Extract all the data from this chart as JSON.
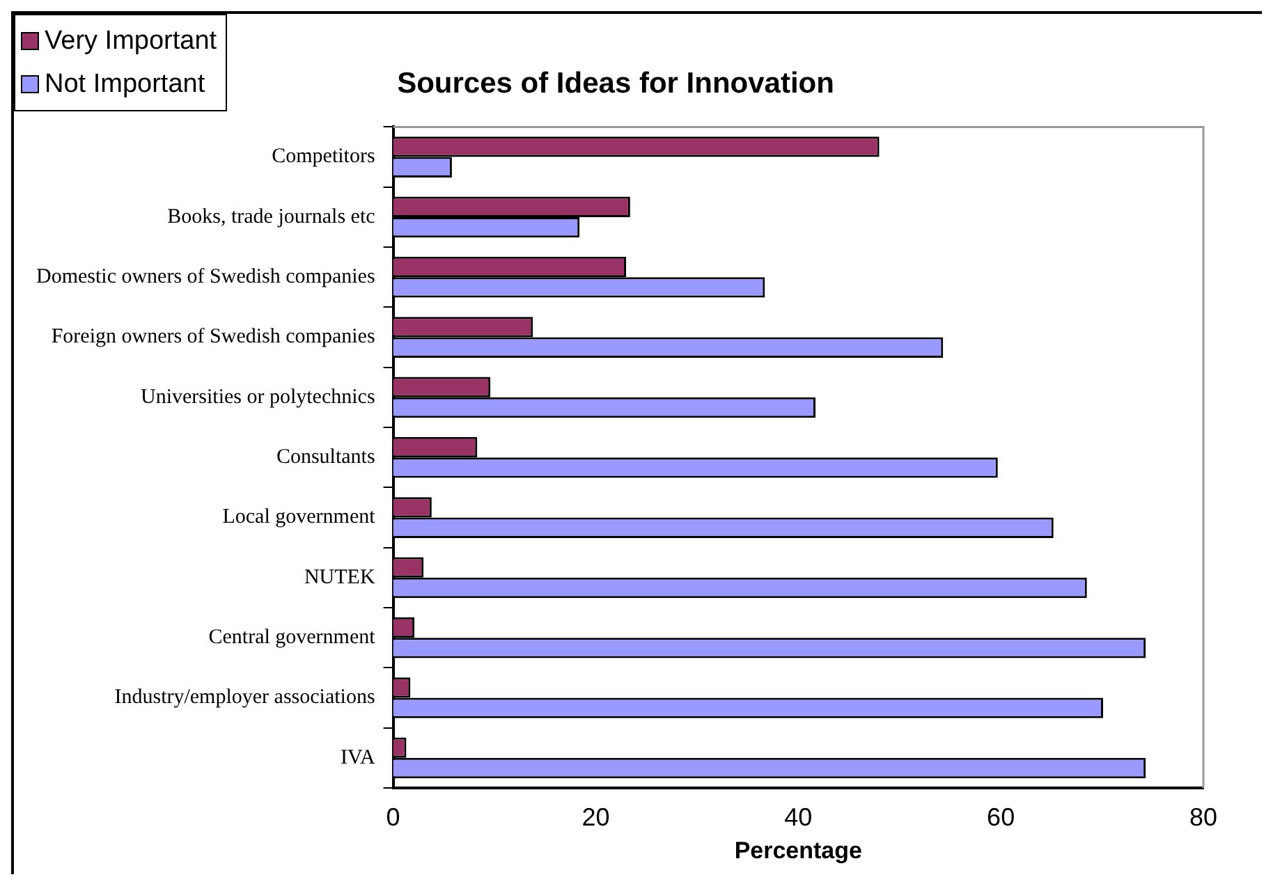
{
  "chart_data": {
    "type": "bar",
    "orientation": "horizontal",
    "title": "Sources of Ideas for Innovation",
    "xlabel": "Percentage",
    "categories": [
      "Competitors",
      "Books, trade journals etc",
      "Domestic owners of Swedish companies",
      "Foreign owners of Swedish companies",
      "Universities or polytechnics",
      "Consultants",
      "Local government",
      "NUTEK",
      "Central government",
      "Industry/employer associations",
      "IVA"
    ],
    "series": [
      {
        "name": "Very Important",
        "color": "#993366",
        "values": [
          48,
          23.4,
          23,
          13.8,
          9.6,
          8.3,
          3.8,
          3,
          2.1,
          1.7,
          1.3
        ]
      },
      {
        "name": "Not Important",
        "color": "#9999ff",
        "values": [
          5.8,
          18.4,
          36.7,
          54.3,
          41.7,
          59.7,
          65.2,
          68.5,
          74.3,
          70.1,
          74.3
        ]
      }
    ],
    "xlim": [
      0,
      80
    ],
    "xticks": [
      0,
      20,
      40,
      60,
      80
    ],
    "grid": false,
    "legend": "top left"
  }
}
